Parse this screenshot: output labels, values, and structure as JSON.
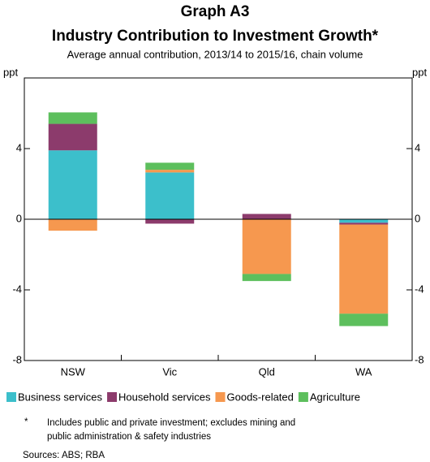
{
  "chart_data": {
    "type": "bar",
    "stacked": true,
    "title": "Graph A3",
    "subtitle": "Industry Contribution to Investment Growth*",
    "description": "Average annual contribution, 2013/14 to 2015/16, chain volume",
    "y_label": "ppt",
    "categories": [
      "NSW",
      "Vic",
      "Qld",
      "WA"
    ],
    "series": [
      {
        "name": "Business services",
        "color": "#3cbfcb",
        "values": [
          3.9,
          2.65,
          0,
          -0.2
        ]
      },
      {
        "name": "Household services",
        "color": "#8c3b6c",
        "values": [
          1.5,
          -0.25,
          0.3,
          -0.1
        ]
      },
      {
        "name": "Goods-related",
        "color": "#f6984f",
        "values": [
          -0.65,
          0.15,
          -3.1,
          -5.05
        ]
      },
      {
        "name": "Agriculture",
        "color": "#5dbf5d",
        "values": [
          0.65,
          0.4,
          -0.4,
          -0.7
        ]
      }
    ],
    "ylim": [
      -8,
      8
    ],
    "yticks": [
      -8,
      -4,
      0,
      4
    ],
    "footnote_mark": "*",
    "footnote": "Includes public and private investment; excludes mining and public administration & safety industries",
    "sources": "Sources:  ABS; RBA"
  }
}
